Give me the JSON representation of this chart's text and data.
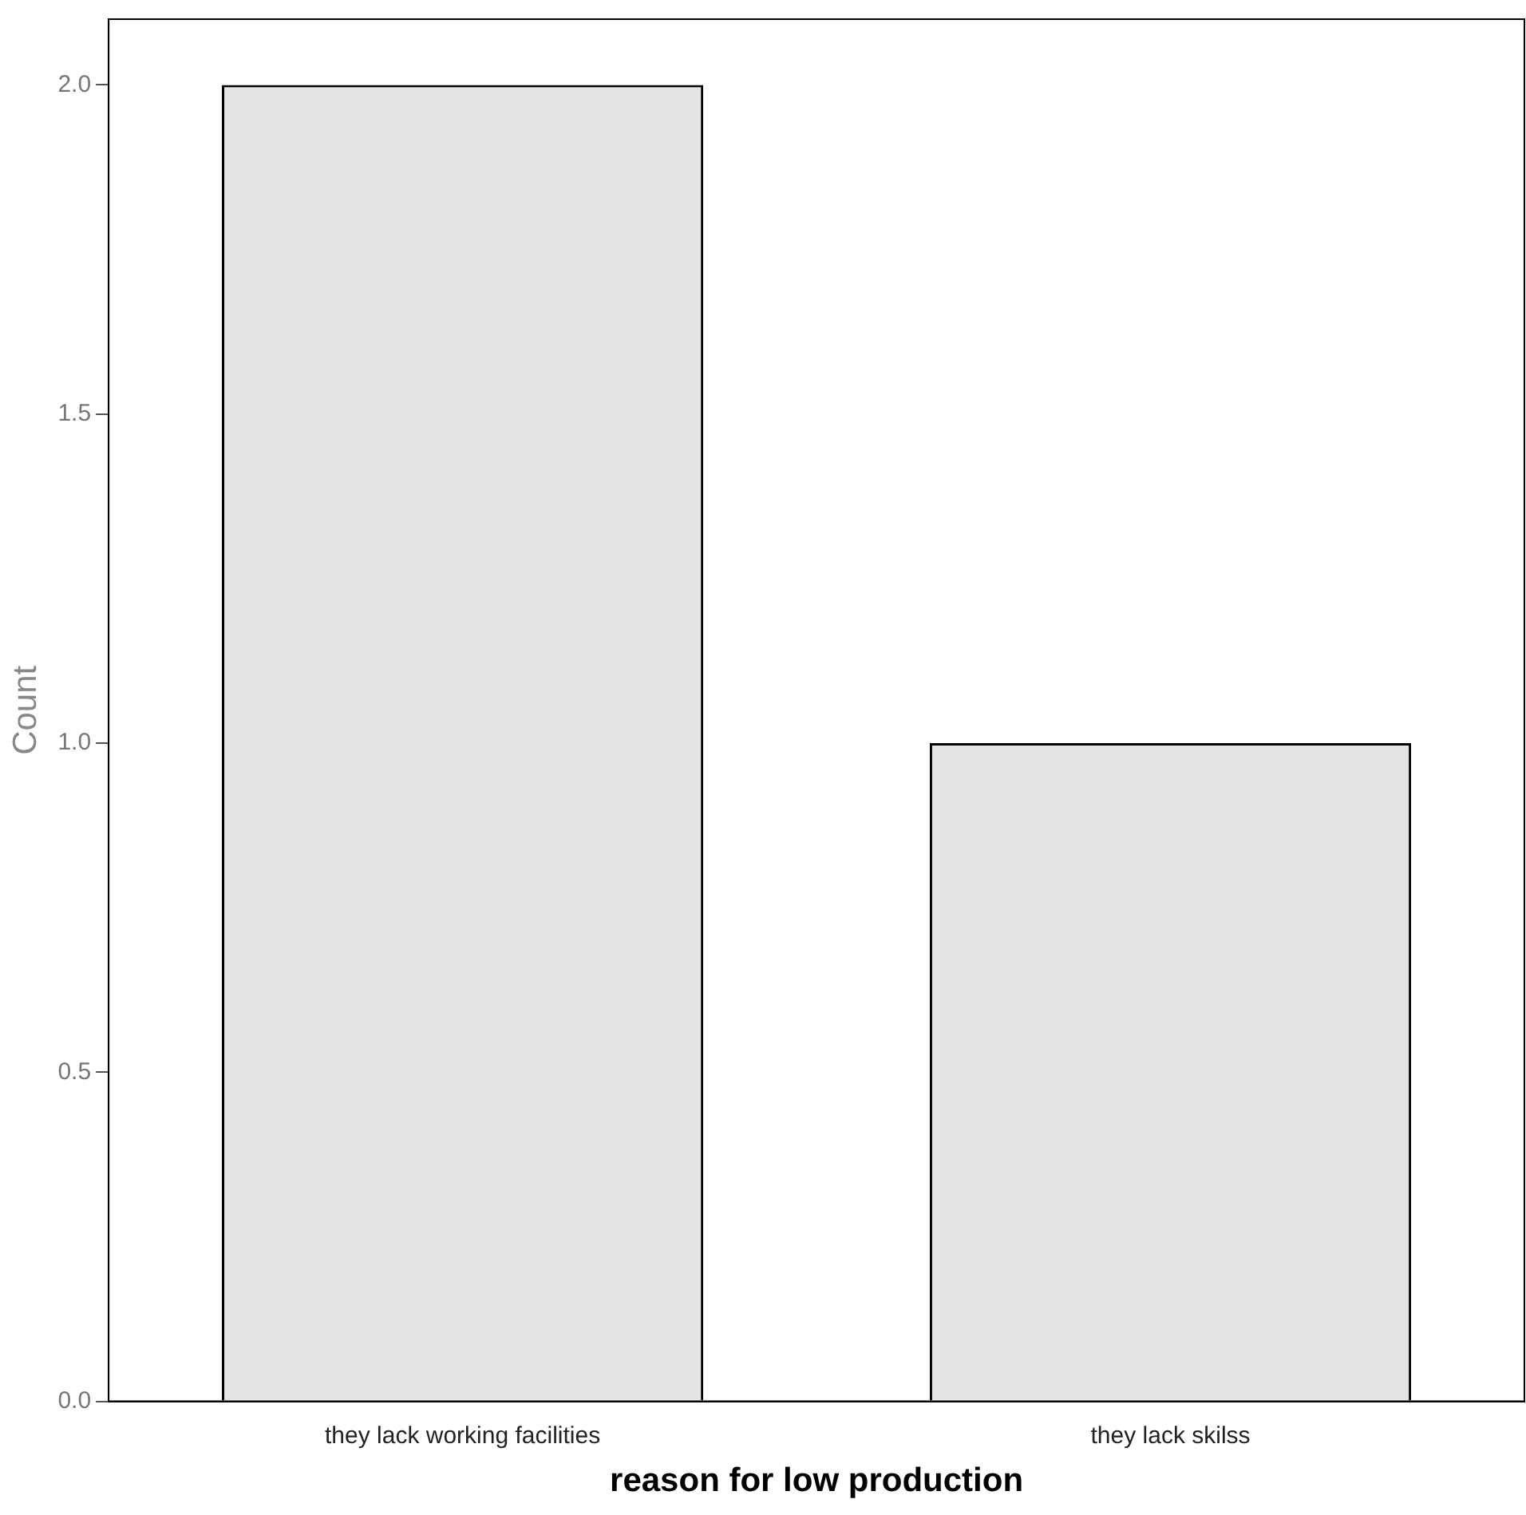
{
  "chart_data": {
    "type": "bar",
    "xlabel": "reason for low production",
    "ylabel": "Count",
    "categories": [
      "they lack working facilities",
      "they lack skilss"
    ],
    "values": [
      2,
      1
    ],
    "color": "#e4e4e4",
    "ylim": [
      0,
      2.1
    ],
    "yticks": [
      {
        "value": 0,
        "label": "0.0"
      },
      {
        "value": 0.5,
        "label": "0.5"
      },
      {
        "value": 1,
        "label": "1.0"
      },
      {
        "value": 1.5,
        "label": "1.5"
      },
      {
        "value": 2,
        "label": "2.0"
      }
    ],
    "grid": false,
    "legend": false
  }
}
